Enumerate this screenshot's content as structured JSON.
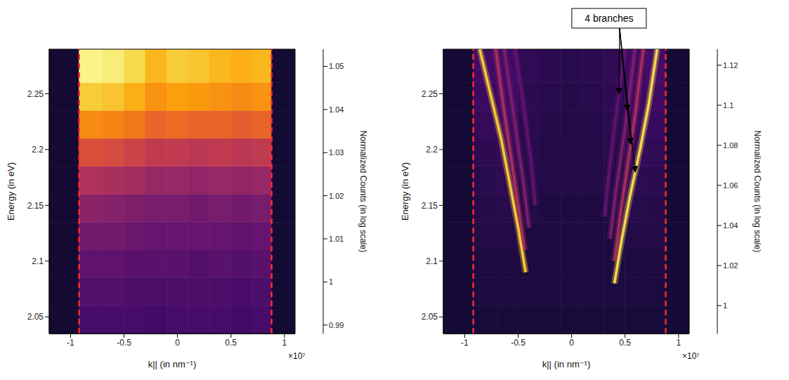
{
  "chart_data": [
    {
      "type": "heatmap",
      "xlabel": "k|| (in nm⁻¹)",
      "ylabel": "Energy (in eV)",
      "x_multiplier": "×10⁷",
      "xlim": [
        -1.2,
        1.1
      ],
      "xticks": [
        -1,
        -0.5,
        0,
        0.5,
        1
      ],
      "ylim": [
        2.035,
        2.29
      ],
      "yticks": [
        2.05,
        2.1,
        2.15,
        2.2,
        2.25
      ],
      "x_edges": [
        -1.2,
        -0.92,
        -0.7,
        -0.5,
        -0.3,
        -0.1,
        0.1,
        0.3,
        0.5,
        0.7,
        0.88,
        1.1
      ],
      "y_edges": [
        2.035,
        2.06,
        2.085,
        2.11,
        2.135,
        2.16,
        2.185,
        2.21,
        2.235,
        2.26,
        2.29
      ],
      "cells": [
        [
          0.994,
          1.002,
          1.002,
          1.002,
          1.001,
          1.002,
          1.002,
          1.002,
          1.001,
          1.002,
          0.994
        ],
        [
          0.994,
          1.004,
          1.004,
          1.003,
          1.003,
          1.003,
          1.003,
          1.003,
          1.002,
          1.003,
          0.994
        ],
        [
          0.994,
          1.006,
          1.006,
          1.005,
          1.005,
          1.005,
          1.004,
          1.005,
          1.004,
          1.005,
          0.994
        ],
        [
          0.994,
          1.009,
          1.009,
          1.008,
          1.007,
          1.007,
          1.007,
          1.007,
          1.006,
          1.007,
          0.994
        ],
        [
          0.994,
          1.013,
          1.012,
          1.011,
          1.01,
          1.01,
          1.009,
          1.01,
          1.009,
          1.01,
          0.994
        ],
        [
          0.994,
          1.019,
          1.018,
          1.017,
          1.015,
          1.015,
          1.014,
          1.015,
          1.014,
          1.015,
          0.994
        ],
        [
          0.994,
          1.027,
          1.026,
          1.024,
          1.022,
          1.022,
          1.021,
          1.022,
          1.021,
          1.022,
          0.994
        ],
        [
          0.994,
          1.037,
          1.036,
          1.034,
          1.031,
          1.032,
          1.031,
          1.031,
          1.03,
          1.031,
          0.994
        ],
        [
          0.994,
          1.046,
          1.045,
          1.042,
          1.038,
          1.04,
          1.039,
          1.038,
          1.037,
          1.038,
          0.994
        ],
        [
          0.994,
          1.052,
          1.051,
          1.048,
          1.043,
          1.046,
          1.045,
          1.043,
          1.042,
          1.043,
          0.994
        ]
      ],
      "colorbar": {
        "label": "Normalized Counts (in log scale)",
        "range": [
          0.988,
          1.054
        ],
        "ticks": [
          0.99,
          1,
          1.01,
          1.02,
          1.03,
          1.04,
          1.05
        ]
      },
      "boundaries": {
        "x": [
          -0.92,
          0.88
        ],
        "color": "#ff2a2a",
        "line_style": "dashed"
      },
      "branches": []
    },
    {
      "type": "heatmap",
      "xlabel": "k|| (in nm⁻¹)",
      "ylabel": "Energy (in eV)",
      "x_multiplier": "×10⁷",
      "xlim": [
        -1.2,
        1.1
      ],
      "xticks": [
        -1,
        -0.5,
        0,
        0.5,
        1
      ],
      "ylim": [
        2.035,
        2.29
      ],
      "yticks": [
        2.05,
        2.1,
        2.15,
        2.2,
        2.25
      ],
      "x_edges": [
        -1.2,
        -0.92,
        -0.7,
        -0.5,
        -0.3,
        -0.1,
        0.1,
        0.3,
        0.5,
        0.7,
        0.88,
        1.1
      ],
      "y_edges": [
        2.035,
        2.06,
        2.085,
        2.11,
        2.135,
        2.16,
        2.185,
        2.21,
        2.235,
        2.26,
        2.29
      ],
      "cells": [
        [
          0.999,
          1.001,
          1.001,
          1.001,
          1.001,
          1.001,
          1.001,
          1.001,
          1.001,
          1.001,
          0.999
        ],
        [
          0.999,
          1.002,
          1.002,
          1.002,
          1.002,
          1.002,
          1.002,
          1.002,
          1.002,
          1.002,
          0.999
        ],
        [
          0.999,
          1.003,
          1.003,
          1.002,
          1.002,
          1.002,
          1.002,
          1.002,
          1.003,
          1.003,
          0.999
        ],
        [
          0.999,
          1.004,
          1.004,
          1.003,
          1.003,
          1.003,
          1.003,
          1.003,
          1.004,
          1.004,
          0.999
        ],
        [
          0.999,
          1.005,
          1.006,
          1.004,
          1.003,
          1.003,
          1.003,
          1.004,
          1.006,
          1.005,
          0.999
        ],
        [
          0.999,
          1.006,
          1.008,
          1.005,
          1.004,
          1.004,
          1.004,
          1.005,
          1.008,
          1.007,
          0.999
        ],
        [
          0.999,
          1.008,
          1.01,
          1.006,
          1.004,
          1.004,
          1.004,
          1.006,
          1.01,
          1.009,
          0.999
        ],
        [
          0.999,
          1.01,
          1.012,
          1.007,
          1.005,
          1.005,
          1.005,
          1.007,
          1.011,
          1.011,
          0.999
        ],
        [
          0.999,
          1.012,
          1.013,
          1.008,
          1.006,
          1.005,
          1.006,
          1.008,
          1.012,
          1.013,
          0.999
        ],
        [
          0.999,
          1.014,
          1.014,
          1.009,
          1.007,
          1.006,
          1.007,
          1.009,
          1.013,
          1.015,
          0.999
        ]
      ],
      "colorbar": {
        "label": "Normalized Counts (in log scale)",
        "range": [
          0.986,
          1.128
        ],
        "ticks": [
          1,
          1.02,
          1.04,
          1.06,
          1.08,
          1.1,
          1.12
        ]
      },
      "boundaries": {
        "x": [
          -0.92,
          0.88
        ],
        "color": "#ff2a2a",
        "line_style": "dashed"
      },
      "branches": [
        {
          "x": [
            0.4,
            0.47,
            0.55,
            0.64,
            0.72,
            0.8
          ],
          "y": [
            2.08,
            2.12,
            2.16,
            2.2,
            2.24,
            2.29
          ],
          "value": 1.115
        },
        {
          "x": [
            0.4,
            0.46,
            0.53,
            0.6,
            0.67
          ],
          "y": [
            2.1,
            2.145,
            2.19,
            2.235,
            2.29
          ],
          "value": 1.05
        },
        {
          "x": [
            0.36,
            0.41,
            0.47,
            0.53,
            0.59
          ],
          "y": [
            2.12,
            2.16,
            2.2,
            2.24,
            2.29
          ],
          "value": 1.035
        },
        {
          "x": [
            0.31,
            0.35,
            0.4,
            0.45,
            0.5
          ],
          "y": [
            2.14,
            2.18,
            2.22,
            2.255,
            2.29
          ],
          "value": 1.025
        },
        {
          "x": [
            -0.43,
            -0.5,
            -0.58,
            -0.66,
            -0.76,
            -0.86
          ],
          "y": [
            2.09,
            2.13,
            2.17,
            2.21,
            2.25,
            2.29
          ],
          "value": 1.11
        },
        {
          "x": [
            -0.44,
            -0.5,
            -0.57,
            -0.64,
            -0.71
          ],
          "y": [
            2.11,
            2.15,
            2.195,
            2.24,
            2.29
          ],
          "value": 1.05
        },
        {
          "x": [
            -0.4,
            -0.45,
            -0.51,
            -0.57,
            -0.63
          ],
          "y": [
            2.13,
            2.17,
            2.21,
            2.25,
            2.29
          ],
          "value": 1.035
        },
        {
          "x": [
            -0.34,
            -0.38,
            -0.43,
            -0.48,
            -0.53
          ],
          "y": [
            2.15,
            2.19,
            2.225,
            2.26,
            2.29
          ],
          "value": 1.025
        }
      ],
      "annotation": {
        "text": "4 branches"
      }
    }
  ]
}
